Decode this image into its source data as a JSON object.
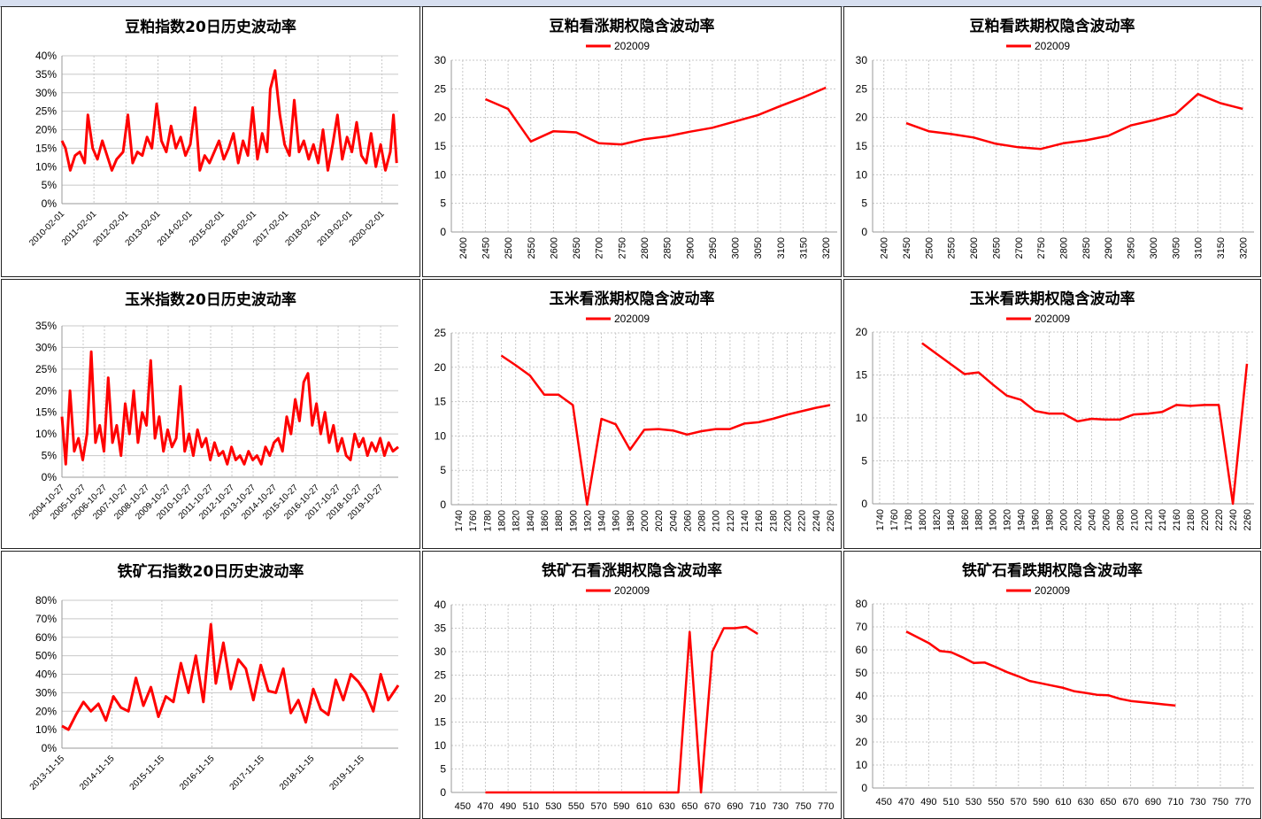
{
  "colors": {
    "series": "#ff0000",
    "grid": "#c8c8c8",
    "axis": "#999999",
    "text": "#000000"
  },
  "chart_data": [
    {
      "type": "line",
      "title": "豆粕指数20日历史波动率",
      "x_labels": [
        "2010-02-01",
        "2011-02-01",
        "2012-02-01",
        "2013-02-01",
        "2014-02-01",
        "2015-02-01",
        "2016-02-01",
        "2017-02-01",
        "2018-02-01",
        "2019-02-01",
        "2020-02-01"
      ],
      "y_labels": [
        "0%",
        "5%",
        "10%",
        "15%",
        "20%",
        "25%",
        "30%",
        "35%",
        "40%"
      ],
      "ylim": [
        0,
        40
      ],
      "x_range": [
        2010.09,
        2020.6
      ],
      "grid": "vertical-dashed",
      "series": [
        {
          "x": [
            2010.09,
            2010.2,
            2010.35,
            2010.5,
            2010.65,
            2010.8,
            2010.9,
            2011.05,
            2011.2,
            2011.35,
            2011.5,
            2011.65,
            2011.8,
            2012.0,
            2012.15,
            2012.3,
            2012.45,
            2012.6,
            2012.75,
            2012.9,
            2013.05,
            2013.2,
            2013.35,
            2013.5,
            2013.65,
            2013.8,
            2013.95,
            2014.1,
            2014.25,
            2014.4,
            2014.55,
            2014.7,
            2014.85,
            2015.0,
            2015.15,
            2015.3,
            2015.45,
            2015.6,
            2015.75,
            2015.9,
            2016.05,
            2016.2,
            2016.35,
            2016.5,
            2016.6,
            2016.75,
            2016.9,
            2017.05,
            2017.2,
            2017.35,
            2017.5,
            2017.65,
            2017.8,
            2017.95,
            2018.1,
            2018.25,
            2018.4,
            2018.55,
            2018.7,
            2018.85,
            2019.0,
            2019.15,
            2019.3,
            2019.45,
            2019.6,
            2019.75,
            2019.9,
            2020.05,
            2020.2,
            2020.35,
            2020.45,
            2020.55
          ],
          "values": [
            17,
            15,
            9,
            13,
            14,
            11,
            24,
            15,
            12,
            17,
            13,
            9,
            12,
            14,
            24,
            11,
            14,
            13,
            18,
            15,
            27,
            17,
            14,
            21,
            15,
            18,
            13,
            16,
            26,
            9,
            13,
            11,
            14,
            17,
            12,
            15,
            19,
            11,
            17,
            13,
            26,
            12,
            19,
            14,
            31,
            36,
            24,
            16,
            13,
            28,
            14,
            17,
            12,
            16,
            11,
            20,
            9,
            16,
            24,
            12,
            18,
            14,
            22,
            13,
            11,
            19,
            10,
            16,
            9,
            14,
            24,
            11
          ]
        }
      ]
    },
    {
      "type": "line",
      "title": "豆粕看涨期权隐含波动率",
      "legend": "202009",
      "x_labels": [
        "2400",
        "2450",
        "2500",
        "2550",
        "2600",
        "2650",
        "2700",
        "2750",
        "2800",
        "2850",
        "2900",
        "2950",
        "3000",
        "3050",
        "3100",
        "3150",
        "3200"
      ],
      "y_labels": [
        "0",
        "5",
        "10",
        "15",
        "20",
        "25",
        "30"
      ],
      "ylim": [
        0,
        30
      ],
      "series": [
        {
          "name": "202009",
          "x": [
            2450,
            2500,
            2550,
            2600,
            2650,
            2700,
            2750,
            2800,
            2850,
            2900,
            2950,
            3000,
            3050,
            3100,
            3150,
            3200
          ],
          "values": [
            23.2,
            21.5,
            15.8,
            17.6,
            17.4,
            15.5,
            15.3,
            16.2,
            16.7,
            17.5,
            18.2,
            19.3,
            20.4,
            22.0,
            23.5,
            25.2
          ]
        }
      ]
    },
    {
      "type": "line",
      "title": "豆粕看跌期权隐含波动率",
      "legend": "202009",
      "x_labels": [
        "2400",
        "2450",
        "2500",
        "2550",
        "2600",
        "2650",
        "2700",
        "2750",
        "2800",
        "2850",
        "2900",
        "2950",
        "3000",
        "3050",
        "3100",
        "3150",
        "3200"
      ],
      "y_labels": [
        "0",
        "5",
        "10",
        "15",
        "20",
        "25",
        "30"
      ],
      "ylim": [
        0,
        30
      ],
      "series": [
        {
          "name": "202009",
          "x": [
            2450,
            2500,
            2550,
            2600,
            2650,
            2700,
            2750,
            2800,
            2850,
            2900,
            2950,
            3000,
            3050,
            3100,
            3150,
            3200
          ],
          "values": [
            19.0,
            17.6,
            17.1,
            16.5,
            15.4,
            14.8,
            14.5,
            15.5,
            16.0,
            16.8,
            18.6,
            19.5,
            20.6,
            24.1,
            22.5,
            21.5
          ]
        }
      ]
    },
    {
      "type": "line",
      "title": "玉米指数20日历史波动率",
      "x_labels": [
        "2004-10-27",
        "2005-10-27",
        "2006-10-27",
        "2007-10-27",
        "2008-10-27",
        "2009-10-27",
        "2010-10-27",
        "2011-10-27",
        "2012-10-27",
        "2013-10-27",
        "2014-10-27",
        "2015-10-27",
        "2016-10-27",
        "2017-10-27",
        "2018-10-27",
        "2019-10-27"
      ],
      "y_labels": [
        "0%",
        "5%",
        "10%",
        "15%",
        "20%",
        "25%",
        "30%",
        "35%"
      ],
      "ylim": [
        0,
        35
      ],
      "x_range": [
        2004.82,
        2020.65
      ],
      "grid": "vertical-dashed",
      "series": [
        {
          "x": [
            2004.82,
            2005.0,
            2005.2,
            2005.4,
            2005.6,
            2005.8,
            2006.0,
            2006.2,
            2006.4,
            2006.6,
            2006.8,
            2007.0,
            2007.2,
            2007.4,
            2007.6,
            2007.8,
            2008.0,
            2008.2,
            2008.4,
            2008.6,
            2008.8,
            2009.0,
            2009.2,
            2009.4,
            2009.6,
            2009.8,
            2010.0,
            2010.2,
            2010.4,
            2010.6,
            2010.8,
            2011.0,
            2011.2,
            2011.4,
            2011.6,
            2011.8,
            2012.0,
            2012.2,
            2012.4,
            2012.6,
            2012.8,
            2013.0,
            2013.2,
            2013.4,
            2013.6,
            2013.8,
            2014.0,
            2014.2,
            2014.4,
            2014.6,
            2014.8,
            2015.0,
            2015.2,
            2015.4,
            2015.6,
            2015.8,
            2016.0,
            2016.2,
            2016.4,
            2016.6,
            2016.8,
            2017.0,
            2017.2,
            2017.4,
            2017.6,
            2017.8,
            2018.0,
            2018.2,
            2018.4,
            2018.6,
            2018.8,
            2019.0,
            2019.2,
            2019.4,
            2019.6,
            2019.8,
            2020.0,
            2020.2,
            2020.4,
            2020.65
          ],
          "values": [
            14,
            3,
            20,
            6,
            9,
            4,
            10,
            29,
            8,
            12,
            6,
            23,
            8,
            12,
            5,
            17,
            10,
            20,
            8,
            15,
            12,
            27,
            9,
            14,
            6,
            11,
            7,
            9,
            21,
            6,
            10,
            5,
            11,
            7,
            9,
            4,
            8,
            5,
            6,
            3,
            7,
            4,
            5,
            3,
            6,
            4,
            5,
            3,
            7,
            5,
            8,
            9,
            6,
            14,
            10,
            18,
            13,
            22,
            24,
            12,
            17,
            10,
            15,
            8,
            12,
            6,
            9,
            5,
            4,
            10,
            7,
            9,
            5,
            8,
            6,
            9,
            5,
            8,
            6,
            7
          ]
        }
      ]
    },
    {
      "type": "line",
      "title": "玉米看涨期权隐含波动率",
      "legend": "202009",
      "x_labels": [
        "1740",
        "1760",
        "1780",
        "1800",
        "1820",
        "1840",
        "1860",
        "1880",
        "1900",
        "1920",
        "1940",
        "1960",
        "1980",
        "2000",
        "2020",
        "2040",
        "2060",
        "2080",
        "2100",
        "2120",
        "2140",
        "2160",
        "2180",
        "2200",
        "2220",
        "2240",
        "2260"
      ],
      "y_labels": [
        "0",
        "5",
        "10",
        "15",
        "20",
        "25"
      ],
      "ylim": [
        0,
        25
      ],
      "series": [
        {
          "name": "202009",
          "x": [
            1800,
            1820,
            1840,
            1860,
            1880,
            1900,
            1920,
            1940,
            1960,
            1980,
            2000,
            2020,
            2040,
            2060,
            2080,
            2100,
            2120,
            2140,
            2160,
            2180,
            2200,
            2220,
            2240,
            2260
          ],
          "values": [
            21.7,
            20.3,
            18.8,
            16.0,
            16.0,
            14.5,
            0.0,
            12.5,
            11.7,
            8.0,
            10.9,
            11.0,
            10.8,
            10.2,
            10.7,
            11.0,
            11.0,
            11.8,
            12.0,
            12.5,
            13.1,
            13.6,
            14.1,
            14.5
          ]
        }
      ]
    },
    {
      "type": "line",
      "title": "玉米看跌期权隐含波动率",
      "legend": "202009",
      "x_labels": [
        "1740",
        "1760",
        "1780",
        "1800",
        "1820",
        "1840",
        "1860",
        "1880",
        "1900",
        "1920",
        "1940",
        "1960",
        "1980",
        "2000",
        "2020",
        "2040",
        "2060",
        "2080",
        "2100",
        "2120",
        "2140",
        "2160",
        "2180",
        "2200",
        "2220",
        "2240",
        "2260"
      ],
      "y_labels": [
        "0",
        "5",
        "10",
        "15",
        "20"
      ],
      "ylim": [
        0,
        20
      ],
      "series": [
        {
          "name": "202009",
          "x": [
            1800,
            1820,
            1840,
            1860,
            1880,
            1900,
            1920,
            1940,
            1960,
            1980,
            2000,
            2020,
            2040,
            2060,
            2080,
            2100,
            2120,
            2140,
            2160,
            2180,
            2200,
            2220,
            2240,
            2260
          ],
          "values": [
            18.7,
            17.5,
            16.3,
            15.1,
            15.3,
            13.9,
            12.6,
            12.1,
            10.8,
            10.5,
            10.5,
            9.6,
            9.9,
            9.8,
            9.8,
            10.4,
            10.5,
            10.7,
            11.5,
            11.4,
            11.5,
            11.5,
            0.0,
            16.3
          ]
        }
      ]
    },
    {
      "type": "line",
      "title": "铁矿石指数20日历史波动率",
      "x_labels": [
        "2013-11-15",
        "2014-11-15",
        "2015-11-15",
        "2016-11-15",
        "2017-11-15",
        "2018-11-15",
        "2019-11-15"
      ],
      "y_labels": [
        "0%",
        "10%",
        "20%",
        "30%",
        "40%",
        "50%",
        "60%",
        "70%",
        "80%"
      ],
      "ylim": [
        0,
        80
      ],
      "x_range": [
        2013.87,
        2020.6
      ],
      "grid": "vertical-dashed",
      "series": [
        {
          "x": [
            2013.87,
            2014.0,
            2014.15,
            2014.3,
            2014.45,
            2014.6,
            2014.75,
            2014.9,
            2015.05,
            2015.2,
            2015.35,
            2015.5,
            2015.65,
            2015.8,
            2015.95,
            2016.1,
            2016.25,
            2016.4,
            2016.55,
            2016.7,
            2016.85,
            2016.95,
            2017.1,
            2017.25,
            2017.4,
            2017.55,
            2017.7,
            2017.85,
            2018.0,
            2018.15,
            2018.3,
            2018.45,
            2018.6,
            2018.75,
            2018.9,
            2019.05,
            2019.2,
            2019.35,
            2019.5,
            2019.65,
            2019.8,
            2019.95,
            2020.1,
            2020.25,
            2020.4,
            2020.6
          ],
          "values": [
            12,
            10,
            18,
            25,
            20,
            24,
            15,
            28,
            22,
            20,
            38,
            23,
            33,
            17,
            28,
            25,
            46,
            30,
            50,
            25,
            67,
            35,
            57,
            32,
            48,
            43,
            26,
            45,
            31,
            30,
            43,
            19,
            26,
            14,
            32,
            21,
            18,
            37,
            26,
            40,
            36,
            30,
            20,
            40,
            26,
            34
          ]
        }
      ]
    },
    {
      "type": "line",
      "title": "铁矿石看涨期权隐含波动率",
      "legend": "202009",
      "x_labels": [
        "450",
        "470",
        "490",
        "510",
        "530",
        "550",
        "570",
        "590",
        "610",
        "630",
        "650",
        "670",
        "690",
        "710",
        "730",
        "750",
        "770"
      ],
      "y_labels": [
        "0",
        "5",
        "10",
        "15",
        "20",
        "25",
        "30",
        "35",
        "40"
      ],
      "ylim": [
        0,
        40
      ],
      "series": [
        {
          "name": "202009",
          "x": [
            470,
            480,
            490,
            500,
            510,
            520,
            530,
            540,
            550,
            560,
            570,
            580,
            590,
            600,
            610,
            620,
            630,
            640,
            650,
            660,
            670,
            680,
            690,
            700,
            710
          ],
          "values": [
            0,
            0,
            0,
            0,
            0,
            0,
            0,
            0,
            0,
            0,
            0,
            0,
            0,
            0,
            0,
            0,
            0,
            0,
            34.2,
            0,
            30,
            35,
            35,
            35.3,
            33.8
          ]
        }
      ]
    },
    {
      "type": "line",
      "title": "铁矿石看跌期权隐含波动率",
      "legend": "202009",
      "x_labels": [
        "450",
        "470",
        "490",
        "510",
        "530",
        "550",
        "570",
        "590",
        "610",
        "630",
        "650",
        "670",
        "690",
        "710",
        "730",
        "750",
        "770"
      ],
      "y_labels": [
        "0",
        "10",
        "20",
        "30",
        "40",
        "50",
        "60",
        "70",
        "80"
      ],
      "ylim": [
        0,
        80
      ],
      "series": [
        {
          "name": "202009",
          "x": [
            470,
            480,
            490,
            500,
            510,
            520,
            530,
            540,
            550,
            560,
            570,
            580,
            590,
            600,
            610,
            620,
            630,
            640,
            650,
            660,
            670,
            680,
            690,
            700,
            710
          ],
          "values": [
            68,
            65.5,
            63,
            59.5,
            59,
            56.8,
            54.3,
            54.5,
            52.5,
            50.3,
            48.5,
            46.5,
            45.5,
            44.5,
            43.5,
            42,
            41.3,
            40.5,
            40.3,
            38.8,
            37.8,
            37.3,
            36.8,
            36.3,
            35.8
          ]
        }
      ]
    }
  ]
}
